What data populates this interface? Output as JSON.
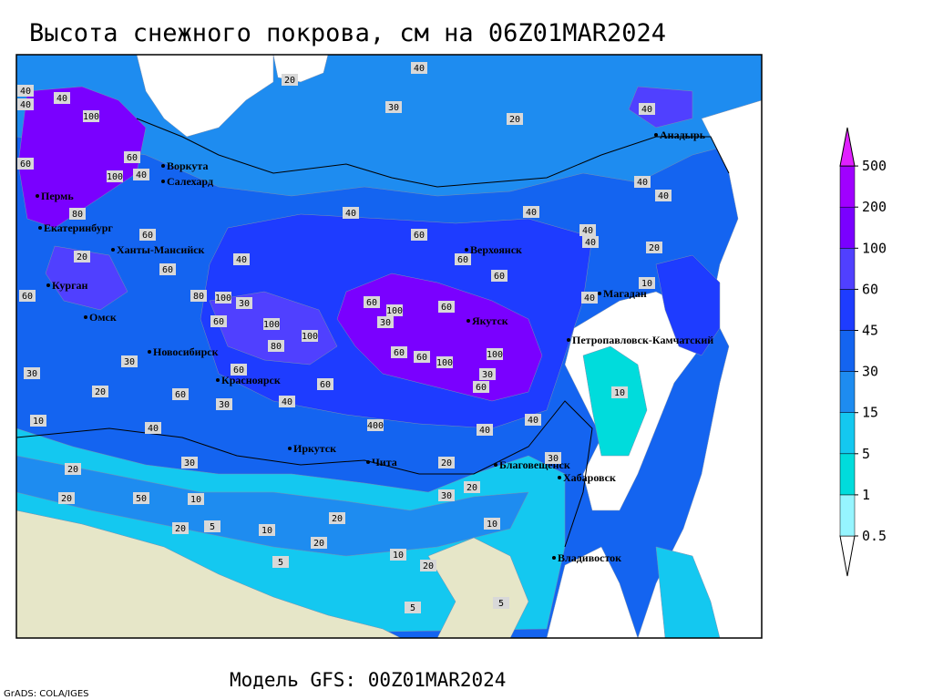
{
  "title": "Высота снежного покрова, см на 06Z01MAR2024",
  "footer_model": "Модель GFS: 00Z01MAR2024",
  "footer_credit": "GrADS: COLA/IGES",
  "colorbar": {
    "levels": [
      0.5,
      1,
      5,
      15,
      30,
      45,
      60,
      100,
      200,
      500
    ],
    "colors": [
      "#ffffff",
      "#96f5ff",
      "#00dcdc",
      "#14c8f0",
      "#1e8cf0",
      "#1464f0",
      "#1e3cff",
      "#5040ff",
      "#7a00ff",
      "#a000ff",
      "#e020ff"
    ]
  },
  "cities": [
    "Воркута",
    "Салехард",
    "Пермь",
    "Екатеринбург",
    "Ханты-Мансийск",
    "Курган",
    "Омск",
    "Новосибирск",
    "Красноярск",
    "Иркутск",
    "Чита",
    "Благовещенск",
    "Хабаровск",
    "Владивосток",
    "Якутск",
    "Верхоянск",
    "Магадан",
    "Петропавловск-Камчатский",
    "Анадырь"
  ],
  "contour_labels": [
    40,
    40,
    100,
    40,
    60,
    100,
    40,
    60,
    80,
    60,
    20,
    60,
    40,
    60,
    80,
    100,
    30,
    100,
    100,
    80,
    60,
    60,
    30,
    20,
    30,
    60,
    40,
    30,
    400,
    40,
    60,
    60,
    60,
    60,
    100,
    30,
    60,
    100,
    100,
    60,
    60,
    30,
    60,
    40,
    20,
    20,
    30,
    20,
    20,
    10,
    5,
    10,
    10,
    20,
    5,
    10,
    5,
    5,
    10,
    10,
    40,
    40,
    40,
    40,
    20,
    30,
    20,
    40,
    40,
    40,
    40,
    20,
    40,
    30,
    50,
    20,
    20,
    10,
    40,
    60,
    20,
    30
  ]
}
